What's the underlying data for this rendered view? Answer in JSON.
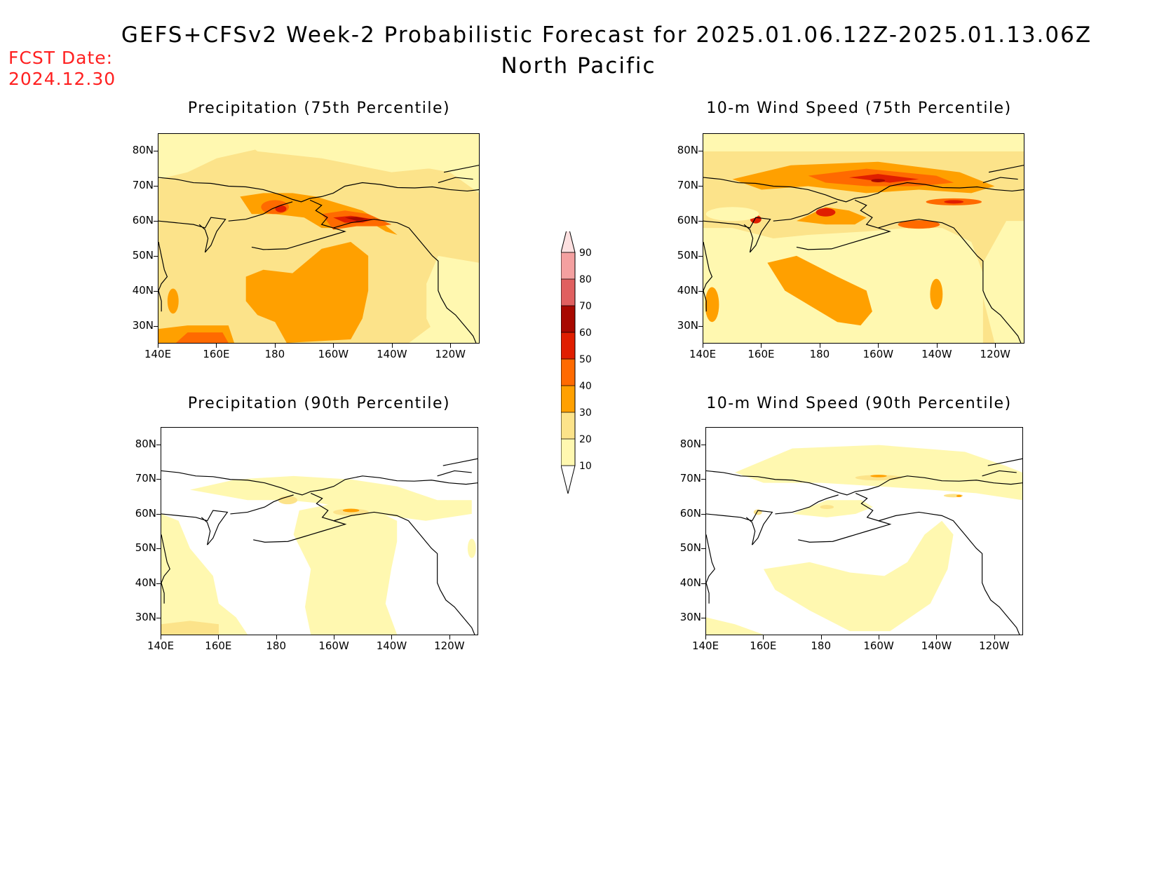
{
  "header": {
    "title_line1": "GEFS+CFSv2 Week-2 Probabilistic Forecast for 2025.01.06.12Z-2025.01.13.06Z",
    "title_line2": "North Pacific",
    "fcst_label": "FCST Date:",
    "fcst_date": "2024.12.30"
  },
  "panels": [
    {
      "id": "precip75",
      "title": "Precipitation (75th Percentile)"
    },
    {
      "id": "wind75",
      "title": "10-m Wind Speed (75th Percentile)"
    },
    {
      "id": "precip90",
      "title": "Precipitation (90th Percentile)"
    },
    {
      "id": "wind90",
      "title": "10-m Wind Speed (90th Percentile)"
    }
  ],
  "axes": {
    "lat_labels": [
      "80N",
      "70N",
      "60N",
      "50N",
      "40N",
      "30N"
    ],
    "lon_labels": [
      "140E",
      "160E",
      "180",
      "160W",
      "140W",
      "120W"
    ]
  },
  "colorbar": {
    "levels": [
      "10",
      "20",
      "30",
      "40",
      "50",
      "60",
      "70",
      "80",
      "90"
    ],
    "colors": [
      "#fff8b0",
      "#fce38a",
      "#ffa000",
      "#ff6a00",
      "#e01e00",
      "#a80800",
      "#e06060",
      "#f4a0a0",
      "#fde0e0"
    ]
  },
  "palette": {
    "lvl1": "#fff8b0",
    "lvl2": "#fce38a",
    "lvl3": "#ffa000",
    "lvl4": "#ff6a00",
    "lvl5": "#e01e00",
    "lvl6": "#a80800"
  }
}
